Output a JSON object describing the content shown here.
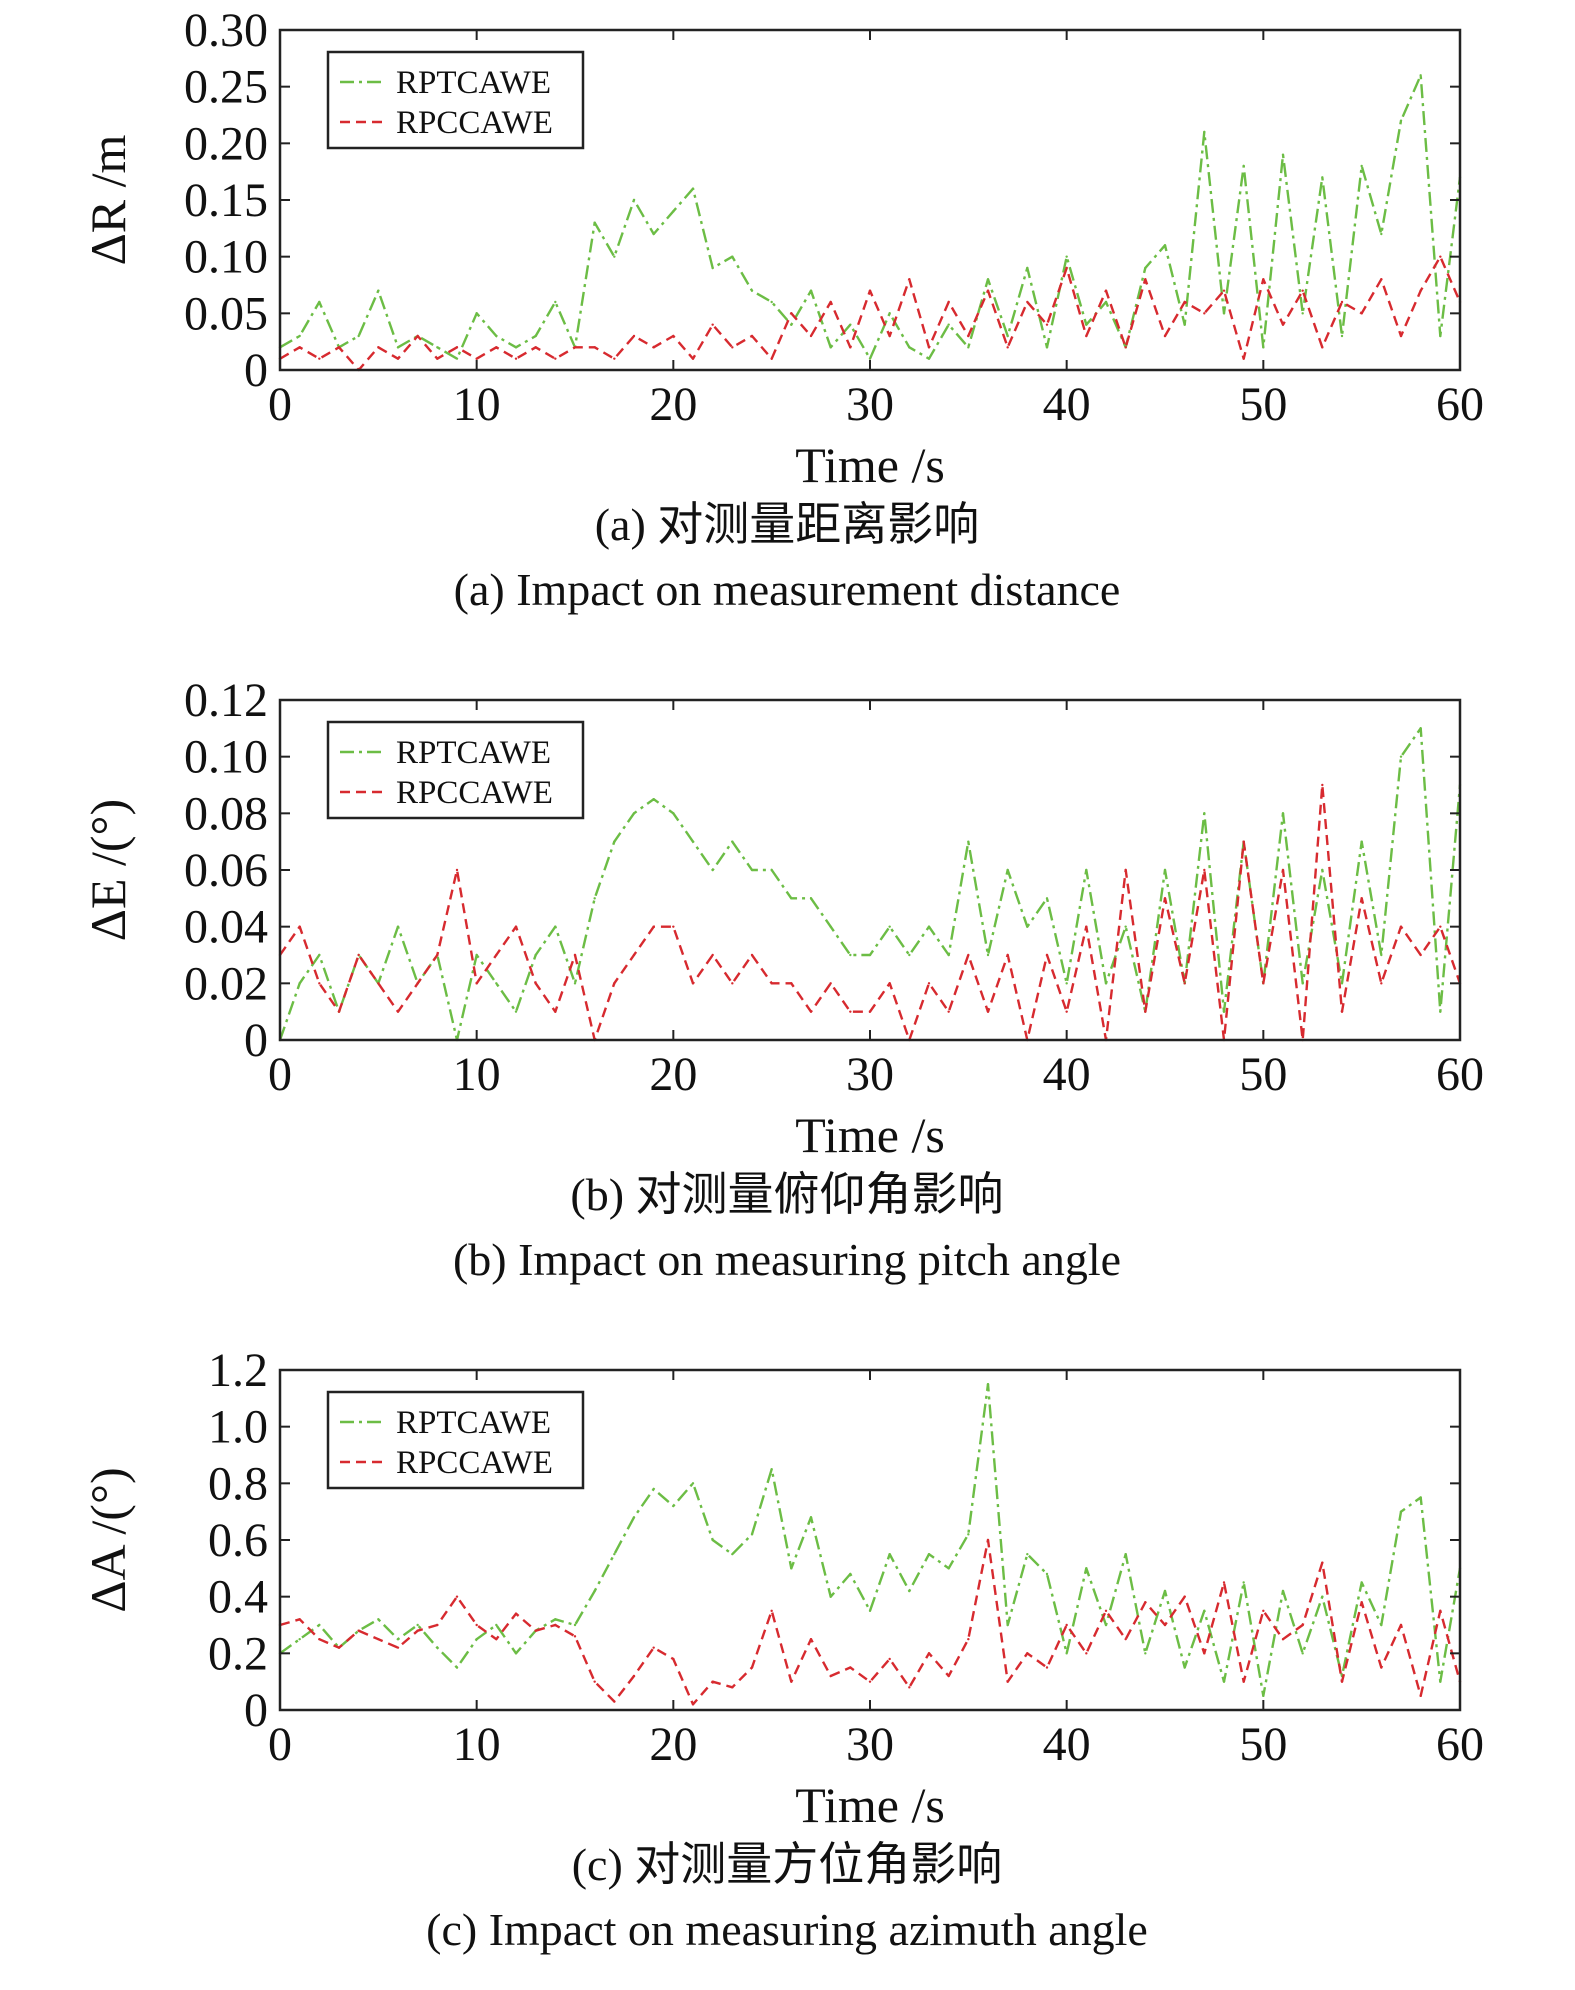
{
  "colors": {
    "green": "#6cbd45",
    "red": "#d72a2f",
    "axis": "#222222"
  },
  "legend": [
    "RPTCAWE",
    "RPCCAWE"
  ],
  "chart_data": [
    {
      "type": "line",
      "ylabel": "ΔR /m",
      "xlabel": "Time /s",
      "caption_cn": "(a) 对测量距离影响",
      "caption_en": "(a) Impact on measurement distance",
      "xlim": [
        0,
        60
      ],
      "ylim": [
        0,
        0.3
      ],
      "xticks": [
        0,
        10,
        20,
        30,
        40,
        50,
        60
      ],
      "yticks": [
        0,
        0.05,
        0.1,
        0.15,
        0.2,
        0.25,
        0.3
      ],
      "ytick_labels": [
        "0",
        "0.05",
        "0.10",
        "0.15",
        "0.20",
        "0.25",
        "0.30"
      ],
      "legend_position": "top-left",
      "series": [
        {
          "name": "RPTCAWE",
          "color": "green",
          "style": "dash-dot",
          "x": [
            0,
            1,
            2,
            3,
            4,
            5,
            6,
            7,
            8,
            9,
            10,
            11,
            12,
            13,
            14,
            15,
            16,
            17,
            18,
            19,
            20,
            21,
            22,
            23,
            24,
            25,
            26,
            27,
            28,
            29,
            30,
            31,
            32,
            33,
            34,
            35,
            36,
            37,
            38,
            39,
            40,
            41,
            42,
            43,
            44,
            45,
            46,
            47,
            48,
            49,
            50,
            51,
            52,
            53,
            54,
            55,
            56,
            57,
            58,
            59,
            60
          ],
          "y": [
            0.02,
            0.03,
            0.06,
            0.02,
            0.03,
            0.07,
            0.02,
            0.03,
            0.02,
            0.01,
            0.05,
            0.03,
            0.02,
            0.03,
            0.06,
            0.02,
            0.13,
            0.1,
            0.15,
            0.12,
            0.14,
            0.16,
            0.09,
            0.1,
            0.07,
            0.06,
            0.04,
            0.07,
            0.02,
            0.04,
            0.01,
            0.05,
            0.02,
            0.01,
            0.04,
            0.02,
            0.08,
            0.03,
            0.09,
            0.02,
            0.1,
            0.04,
            0.06,
            0.02,
            0.09,
            0.11,
            0.04,
            0.21,
            0.05,
            0.18,
            0.02,
            0.19,
            0.05,
            0.17,
            0.03,
            0.18,
            0.12,
            0.22,
            0.26,
            0.03,
            0.17
          ]
        },
        {
          "name": "RPCCAWE",
          "color": "red",
          "style": "dashed",
          "x": [
            0,
            1,
            2,
            3,
            4,
            5,
            6,
            7,
            8,
            9,
            10,
            11,
            12,
            13,
            14,
            15,
            16,
            17,
            18,
            19,
            20,
            21,
            22,
            23,
            24,
            25,
            26,
            27,
            28,
            29,
            30,
            31,
            32,
            33,
            34,
            35,
            36,
            37,
            38,
            39,
            40,
            41,
            42,
            43,
            44,
            45,
            46,
            47,
            48,
            49,
            50,
            51,
            52,
            53,
            54,
            55,
            56,
            57,
            58,
            59,
            60
          ],
          "y": [
            0.01,
            0.02,
            0.01,
            0.02,
            0.0,
            0.02,
            0.01,
            0.03,
            0.01,
            0.02,
            0.01,
            0.02,
            0.01,
            0.02,
            0.01,
            0.02,
            0.02,
            0.01,
            0.03,
            0.02,
            0.03,
            0.01,
            0.04,
            0.02,
            0.03,
            0.01,
            0.05,
            0.03,
            0.06,
            0.02,
            0.07,
            0.03,
            0.08,
            0.02,
            0.06,
            0.03,
            0.07,
            0.02,
            0.06,
            0.04,
            0.09,
            0.03,
            0.07,
            0.02,
            0.08,
            0.03,
            0.06,
            0.05,
            0.07,
            0.01,
            0.08,
            0.04,
            0.07,
            0.02,
            0.06,
            0.05,
            0.08,
            0.03,
            0.07,
            0.1,
            0.06
          ]
        }
      ]
    },
    {
      "type": "line",
      "ylabel": "ΔE /(°)",
      "xlabel": "Time /s",
      "caption_cn": "(b) 对测量俯仰角影响",
      "caption_en": "(b) Impact on measuring pitch angle",
      "xlim": [
        0,
        60
      ],
      "ylim": [
        0,
        0.12
      ],
      "xticks": [
        0,
        10,
        20,
        30,
        40,
        50,
        60
      ],
      "yticks": [
        0,
        0.02,
        0.04,
        0.06,
        0.08,
        0.1,
        0.12
      ],
      "ytick_labels": [
        "0",
        "0.02",
        "0.04",
        "0.06",
        "0.08",
        "0.10",
        "0.12"
      ],
      "legend_position": "top-left",
      "series": [
        {
          "name": "RPTCAWE",
          "color": "green",
          "style": "dash-dot",
          "x": [
            0,
            1,
            2,
            3,
            4,
            5,
            6,
            7,
            8,
            9,
            10,
            11,
            12,
            13,
            14,
            15,
            16,
            17,
            18,
            19,
            20,
            21,
            22,
            23,
            24,
            25,
            26,
            27,
            28,
            29,
            30,
            31,
            32,
            33,
            34,
            35,
            36,
            37,
            38,
            39,
            40,
            41,
            42,
            43,
            44,
            45,
            46,
            47,
            48,
            49,
            50,
            51,
            52,
            53,
            54,
            55,
            56,
            57,
            58,
            59,
            60
          ],
          "y": [
            0.0,
            0.02,
            0.03,
            0.01,
            0.03,
            0.02,
            0.04,
            0.02,
            0.03,
            0.0,
            0.03,
            0.02,
            0.01,
            0.03,
            0.04,
            0.02,
            0.05,
            0.07,
            0.08,
            0.085,
            0.08,
            0.07,
            0.06,
            0.07,
            0.06,
            0.06,
            0.05,
            0.05,
            0.04,
            0.03,
            0.03,
            0.04,
            0.03,
            0.04,
            0.03,
            0.07,
            0.03,
            0.06,
            0.04,
            0.05,
            0.02,
            0.06,
            0.02,
            0.04,
            0.01,
            0.06,
            0.02,
            0.08,
            0.01,
            0.07,
            0.02,
            0.08,
            0.02,
            0.06,
            0.02,
            0.07,
            0.03,
            0.1,
            0.11,
            0.01,
            0.09
          ]
        },
        {
          "name": "RPCCAWE",
          "color": "red",
          "style": "dashed",
          "x": [
            0,
            1,
            2,
            3,
            4,
            5,
            6,
            7,
            8,
            9,
            10,
            11,
            12,
            13,
            14,
            15,
            16,
            17,
            18,
            19,
            20,
            21,
            22,
            23,
            24,
            25,
            26,
            27,
            28,
            29,
            30,
            31,
            32,
            33,
            34,
            35,
            36,
            37,
            38,
            39,
            40,
            41,
            42,
            43,
            44,
            45,
            46,
            47,
            48,
            49,
            50,
            51,
            52,
            53,
            54,
            55,
            56,
            57,
            58,
            59,
            60
          ],
          "y": [
            0.03,
            0.04,
            0.02,
            0.01,
            0.03,
            0.02,
            0.01,
            0.02,
            0.03,
            0.06,
            0.02,
            0.03,
            0.04,
            0.02,
            0.01,
            0.03,
            0.0,
            0.02,
            0.03,
            0.04,
            0.04,
            0.02,
            0.03,
            0.02,
            0.03,
            0.02,
            0.02,
            0.01,
            0.02,
            0.01,
            0.01,
            0.02,
            0.0,
            0.02,
            0.01,
            0.03,
            0.01,
            0.03,
            0.0,
            0.03,
            0.01,
            0.04,
            0.0,
            0.06,
            0.01,
            0.05,
            0.02,
            0.06,
            0.0,
            0.07,
            0.02,
            0.06,
            0.0,
            0.09,
            0.01,
            0.05,
            0.02,
            0.04,
            0.03,
            0.04,
            0.02
          ]
        }
      ]
    },
    {
      "type": "line",
      "ylabel": "ΔA /(°)",
      "xlabel": "Time /s",
      "caption_cn": "(c) 对测量方位角影响",
      "caption_en": "(c) Impact on measuring azimuth angle",
      "xlim": [
        0,
        60
      ],
      "ylim": [
        0,
        1.2
      ],
      "xticks": [
        0,
        10,
        20,
        30,
        40,
        50,
        60
      ],
      "yticks": [
        0,
        0.2,
        0.4,
        0.6,
        0.8,
        1.0,
        1.2
      ],
      "ytick_labels": [
        "0",
        "0.2",
        "0.4",
        "0.6",
        "0.8",
        "1.0",
        "1.2"
      ],
      "legend_position": "top-left",
      "series": [
        {
          "name": "RPTCAWE",
          "color": "green",
          "style": "dash-dot",
          "x": [
            0,
            1,
            2,
            3,
            4,
            5,
            6,
            7,
            8,
            9,
            10,
            11,
            12,
            13,
            14,
            15,
            16,
            17,
            18,
            19,
            20,
            21,
            22,
            23,
            24,
            25,
            26,
            27,
            28,
            29,
            30,
            31,
            32,
            33,
            34,
            35,
            36,
            37,
            38,
            39,
            40,
            41,
            42,
            43,
            44,
            45,
            46,
            47,
            48,
            49,
            50,
            51,
            52,
            53,
            54,
            55,
            56,
            57,
            58,
            59,
            60
          ],
          "y": [
            0.2,
            0.25,
            0.3,
            0.22,
            0.28,
            0.32,
            0.25,
            0.3,
            0.22,
            0.15,
            0.25,
            0.3,
            0.2,
            0.28,
            0.32,
            0.3,
            0.42,
            0.55,
            0.68,
            0.78,
            0.72,
            0.8,
            0.6,
            0.55,
            0.62,
            0.85,
            0.5,
            0.68,
            0.4,
            0.48,
            0.35,
            0.55,
            0.42,
            0.55,
            0.5,
            0.62,
            1.15,
            0.3,
            0.55,
            0.48,
            0.2,
            0.5,
            0.3,
            0.55,
            0.2,
            0.42,
            0.15,
            0.35,
            0.1,
            0.45,
            0.05,
            0.42,
            0.2,
            0.4,
            0.12,
            0.45,
            0.3,
            0.7,
            0.75,
            0.1,
            0.5
          ]
        },
        {
          "name": "RPCCAWE",
          "color": "red",
          "style": "dashed",
          "x": [
            0,
            1,
            2,
            3,
            4,
            5,
            6,
            7,
            8,
            9,
            10,
            11,
            12,
            13,
            14,
            15,
            16,
            17,
            18,
            19,
            20,
            21,
            22,
            23,
            24,
            25,
            26,
            27,
            28,
            29,
            30,
            31,
            32,
            33,
            34,
            35,
            36,
            37,
            38,
            39,
            40,
            41,
            42,
            43,
            44,
            45,
            46,
            47,
            48,
            49,
            50,
            51,
            52,
            53,
            54,
            55,
            56,
            57,
            58,
            59,
            60
          ],
          "y": [
            0.3,
            0.32,
            0.25,
            0.22,
            0.28,
            0.25,
            0.22,
            0.28,
            0.3,
            0.4,
            0.3,
            0.25,
            0.34,
            0.28,
            0.3,
            0.26,
            0.1,
            0.03,
            0.12,
            0.22,
            0.18,
            0.02,
            0.1,
            0.08,
            0.15,
            0.35,
            0.1,
            0.25,
            0.12,
            0.15,
            0.1,
            0.18,
            0.08,
            0.2,
            0.12,
            0.25,
            0.6,
            0.1,
            0.2,
            0.15,
            0.3,
            0.2,
            0.35,
            0.25,
            0.38,
            0.3,
            0.4,
            0.2,
            0.45,
            0.1,
            0.35,
            0.25,
            0.3,
            0.52,
            0.1,
            0.38,
            0.15,
            0.3,
            0.05,
            0.35,
            0.1
          ]
        }
      ]
    }
  ]
}
